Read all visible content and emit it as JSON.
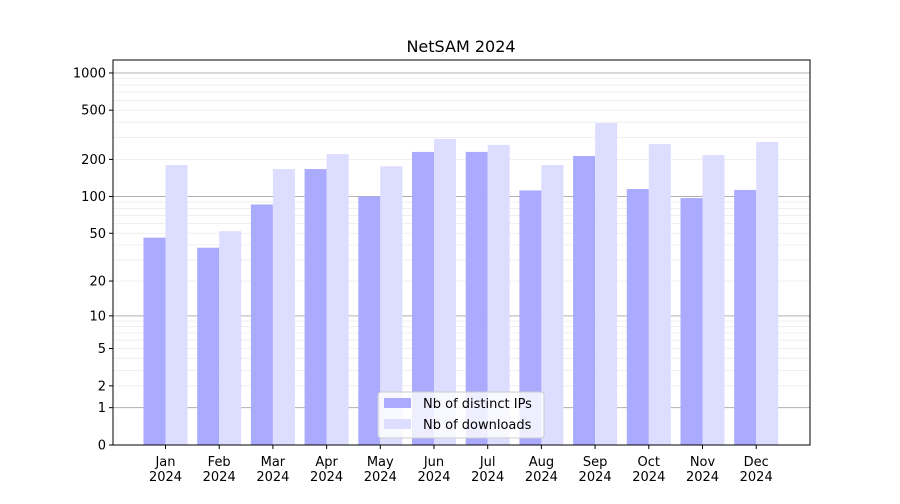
{
  "chart_data": {
    "type": "bar",
    "title": "NetSAM 2024",
    "xlabel": "",
    "ylabel": "",
    "yscale": "symlog",
    "ylim": [
      0,
      1300
    ],
    "yticks": [
      0,
      1,
      2,
      5,
      10,
      20,
      50,
      100,
      200,
      500,
      1000
    ],
    "grid": true,
    "legend_position": "bottom-center",
    "categories": [
      "Jan\n2024",
      "Feb\n2024",
      "Mar\n2024",
      "Apr\n2024",
      "May\n2024",
      "Jun\n2024",
      "Jul\n2024",
      "Aug\n2024",
      "Sep\n2024",
      "Oct\n2024",
      "Nov\n2024",
      "Dec\n2024"
    ],
    "series": [
      {
        "name": "Nb of distinct IPs",
        "color": "#aaaaff",
        "values": [
          46,
          38,
          86,
          167,
          100,
          230,
          230,
          112,
          213,
          115,
          97,
          113
        ]
      },
      {
        "name": "Nb of downloads",
        "color": "#ddddff",
        "values": [
          180,
          52,
          167,
          221,
          176,
          293,
          262,
          180,
          394,
          266,
          217,
          277
        ]
      }
    ]
  }
}
